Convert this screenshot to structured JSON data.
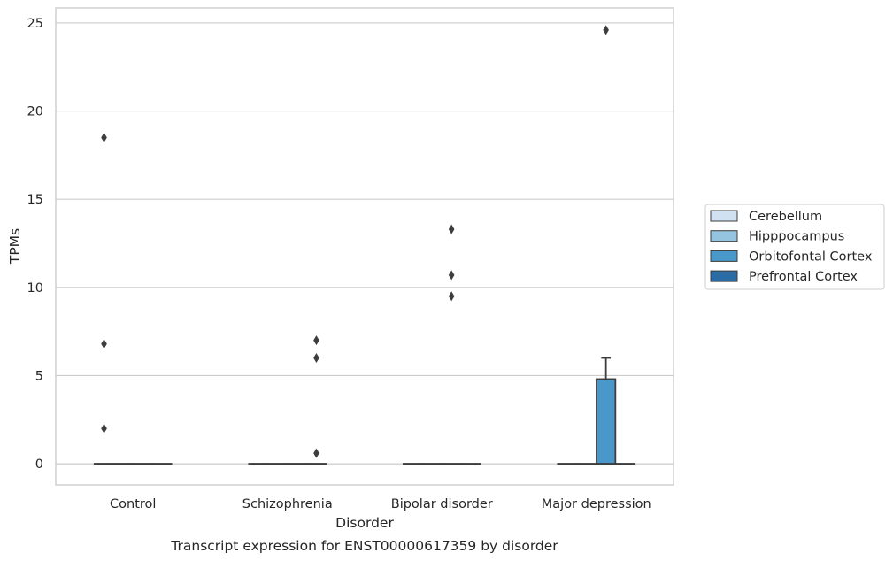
{
  "chart_data": {
    "type": "box",
    "title": "",
    "caption": "Transcript expression for ENST00000617359 by disorder",
    "xlabel": "Disorder",
    "ylabel": "TPMs",
    "categories": [
      "Control",
      "Schizophrenia",
      "Bipolar disorder",
      "Major depression"
    ],
    "ylim": [
      -1.2,
      25.85
    ],
    "yticks": [
      0,
      5,
      10,
      15,
      20,
      25
    ],
    "grid": "horizontal",
    "legend_position": "right",
    "series": [
      {
        "name": "Cerebellum",
        "color": "#d0e1f2"
      },
      {
        "name": "Hipppocampus",
        "color": "#94c4df"
      },
      {
        "name": "Orbitofontal Cortex",
        "color": "#4a98c9"
      },
      {
        "name": "Prefrontal Cortex",
        "color": "#2b6ca6"
      }
    ],
    "boxes": [
      {
        "category": "Control",
        "series": "Cerebellum",
        "whislo": 0,
        "q1": 0,
        "median": 0,
        "q3": 0,
        "whishi": 0,
        "fliers": [
          18.5,
          6.8,
          2.0
        ]
      },
      {
        "category": "Control",
        "series": "Hipppocampus",
        "whislo": 0,
        "q1": 0,
        "median": 0,
        "q3": 0,
        "whishi": 0,
        "fliers": []
      },
      {
        "category": "Control",
        "series": "Orbitofontal Cortex",
        "whislo": 0,
        "q1": 0,
        "median": 0,
        "q3": 0,
        "whishi": 0,
        "fliers": []
      },
      {
        "category": "Control",
        "series": "Prefrontal Cortex",
        "whislo": 0,
        "q1": 0,
        "median": 0,
        "q3": 0,
        "whishi": 0,
        "fliers": []
      },
      {
        "category": "Schizophrenia",
        "series": "Cerebellum",
        "whislo": 0,
        "q1": 0,
        "median": 0,
        "q3": 0,
        "whishi": 0,
        "fliers": []
      },
      {
        "category": "Schizophrenia",
        "series": "Hipppocampus",
        "whislo": 0,
        "q1": 0,
        "median": 0,
        "q3": 0,
        "whishi": 0,
        "fliers": []
      },
      {
        "category": "Schizophrenia",
        "series": "Orbitofontal Cortex",
        "whislo": 0,
        "q1": 0,
        "median": 0,
        "q3": 0,
        "whishi": 0,
        "fliers": []
      },
      {
        "category": "Schizophrenia",
        "series": "Prefrontal Cortex",
        "whislo": 0,
        "q1": 0,
        "median": 0,
        "q3": 0,
        "whishi": 0,
        "fliers": [
          7.0,
          6.0,
          0.6
        ]
      },
      {
        "category": "Bipolar disorder",
        "series": "Cerebellum",
        "whislo": 0,
        "q1": 0,
        "median": 0,
        "q3": 0,
        "whishi": 0,
        "fliers": []
      },
      {
        "category": "Bipolar disorder",
        "series": "Hipppocampus",
        "whislo": 0,
        "q1": 0,
        "median": 0,
        "q3": 0,
        "whishi": 0,
        "fliers": []
      },
      {
        "category": "Bipolar disorder",
        "series": "Orbitofontal Cortex",
        "whislo": 0,
        "q1": 0,
        "median": 0,
        "q3": 0,
        "whishi": 0,
        "fliers": [
          13.3,
          10.7,
          9.5
        ]
      },
      {
        "category": "Bipolar disorder",
        "series": "Prefrontal Cortex",
        "whislo": 0,
        "q1": 0,
        "median": 0,
        "q3": 0,
        "whishi": 0,
        "fliers": []
      },
      {
        "category": "Major depression",
        "series": "Cerebellum",
        "whislo": 0,
        "q1": 0,
        "median": 0,
        "q3": 0,
        "whishi": 0,
        "fliers": []
      },
      {
        "category": "Major depression",
        "series": "Hipppocampus",
        "whislo": 0,
        "q1": 0,
        "median": 0,
        "q3": 0,
        "whishi": 0,
        "fliers": []
      },
      {
        "category": "Major depression",
        "series": "Orbitofontal Cortex",
        "whislo": 0,
        "q1": 0,
        "median": 0,
        "q3": 4.8,
        "whishi": 6.0,
        "fliers": [
          24.6
        ]
      },
      {
        "category": "Major depression",
        "series": "Prefrontal Cortex",
        "whislo": 0,
        "q1": 0,
        "median": 0,
        "q3": 0,
        "whishi": 0,
        "fliers": []
      }
    ]
  }
}
